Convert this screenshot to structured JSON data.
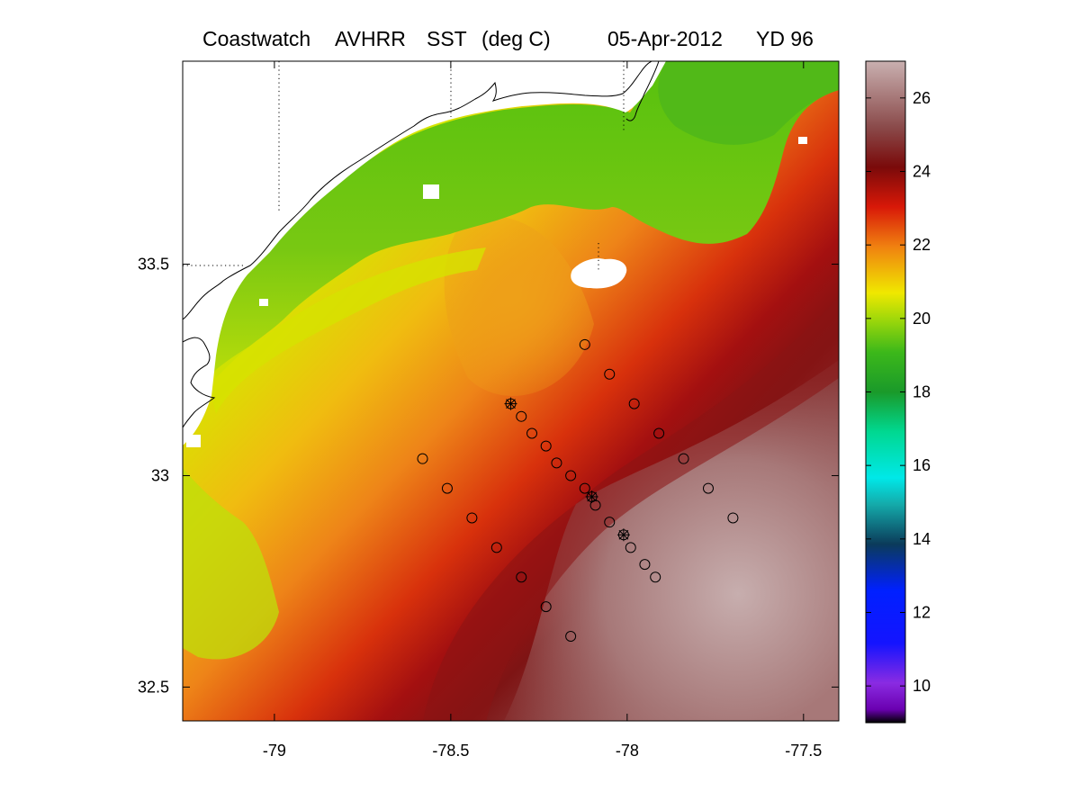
{
  "title": {
    "parts": [
      "Coastwatch",
      "AVHRR",
      "SST",
      "(deg C)"
    ],
    "date": "05-Apr-2012",
    "yearday": "YD 96"
  },
  "map": {
    "lon_range": [
      -79.26,
      -77.4
    ],
    "lat_range": [
      32.42,
      33.98
    ],
    "x_ticks": [
      {
        "value": -79,
        "label": "-79"
      },
      {
        "value": -78.5,
        "label": "-78.5"
      },
      {
        "value": -78,
        "label": "-78"
      },
      {
        "value": -77.5,
        "label": "-77.5"
      }
    ],
    "y_ticks": [
      {
        "value": 33.5,
        "label": "33.5"
      },
      {
        "value": 33,
        "label": "33"
      },
      {
        "value": 32.5,
        "label": "32.5"
      }
    ]
  },
  "colorbar": {
    "range": [
      9,
      27
    ],
    "ticks": [
      {
        "value": 10,
        "label": "10"
      },
      {
        "value": 12,
        "label": "12"
      },
      {
        "value": 14,
        "label": "14"
      },
      {
        "value": 16,
        "label": "16"
      },
      {
        "value": 18,
        "label": "18"
      },
      {
        "value": 20,
        "label": "20"
      },
      {
        "value": 22,
        "label": "22"
      },
      {
        "value": 24,
        "label": "24"
      },
      {
        "value": 26,
        "label": "26"
      }
    ]
  },
  "stations": [
    {
      "lon": -78.33,
      "lat": 33.17,
      "marker": "star"
    },
    {
      "lon": -78.3,
      "lat": 33.14,
      "marker": "circle"
    },
    {
      "lon": -78.27,
      "lat": 33.1,
      "marker": "circle"
    },
    {
      "lon": -78.23,
      "lat": 33.07,
      "marker": "circle"
    },
    {
      "lon": -78.2,
      "lat": 33.03,
      "marker": "circle"
    },
    {
      "lon": -78.16,
      "lat": 33.0,
      "marker": "circle"
    },
    {
      "lon": -78.12,
      "lat": 32.97,
      "marker": "circle"
    },
    {
      "lon": -78.1,
      "lat": 32.95,
      "marker": "star"
    },
    {
      "lon": -78.09,
      "lat": 32.93,
      "marker": "circle"
    },
    {
      "lon": -78.05,
      "lat": 32.89,
      "marker": "circle"
    },
    {
      "lon": -78.01,
      "lat": 32.86,
      "marker": "star"
    },
    {
      "lon": -77.99,
      "lat": 32.83,
      "marker": "circle"
    },
    {
      "lon": -77.95,
      "lat": 32.79,
      "marker": "circle"
    },
    {
      "lon": -77.92,
      "lat": 32.76,
      "marker": "circle"
    },
    {
      "lon": -78.12,
      "lat": 33.31,
      "marker": "circle"
    },
    {
      "lon": -78.05,
      "lat": 33.24,
      "marker": "circle"
    },
    {
      "lon": -77.98,
      "lat": 33.17,
      "marker": "circle"
    },
    {
      "lon": -77.91,
      "lat": 33.1,
      "marker": "circle"
    },
    {
      "lon": -77.84,
      "lat": 33.04,
      "marker": "circle"
    },
    {
      "lon": -77.77,
      "lat": 32.97,
      "marker": "circle"
    },
    {
      "lon": -77.7,
      "lat": 32.9,
      "marker": "circle"
    },
    {
      "lon": -78.58,
      "lat": 33.04,
      "marker": "circle"
    },
    {
      "lon": -78.51,
      "lat": 32.97,
      "marker": "circle"
    },
    {
      "lon": -78.44,
      "lat": 32.9,
      "marker": "circle"
    },
    {
      "lon": -78.37,
      "lat": 32.83,
      "marker": "circle"
    },
    {
      "lon": -78.3,
      "lat": 32.76,
      "marker": "circle"
    },
    {
      "lon": -78.23,
      "lat": 32.69,
      "marker": "circle"
    },
    {
      "lon": -78.16,
      "lat": 32.62,
      "marker": "circle"
    }
  ]
}
